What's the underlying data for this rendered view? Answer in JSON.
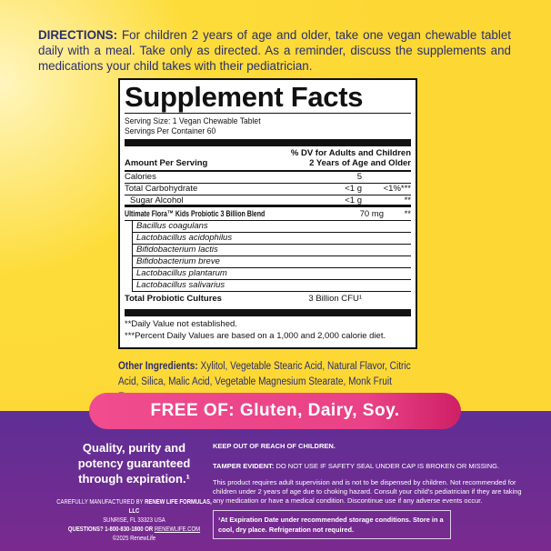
{
  "directions": {
    "label": "DIRECTIONS:",
    "text": "For children 2 years of age and older, take one vegan chewable tablet daily with a meal. Take only as directed. As a reminder, discuss the supplements and medications your child takes with their pediatrician."
  },
  "facts": {
    "title": "Supplement Facts",
    "serving_size": "Serving Size: 1 Vegan Chewable Tablet",
    "servings_per_container": "Servings Per Container 60",
    "amount_header": "Amount Per Serving",
    "dv_header_1": "% DV for Adults and Children",
    "dv_header_2": "2 Years of Age and Older",
    "rows": [
      {
        "name": "Calories",
        "amount": "5",
        "dv": ""
      },
      {
        "name": "Total Carbohydrate",
        "amount": "<1 g",
        "dv": "<1%***"
      },
      {
        "name": "Sugar Alcohol",
        "amount": "<1 g",
        "dv": "**"
      },
      {
        "name": "Ultimate Flora™ Kids Probiotic 3 Billion Blend",
        "amount": "70 mg",
        "dv": "**"
      }
    ],
    "strains": [
      "Bacillus coagulans",
      "Lactobacillus acidophilus",
      "Bifidobacterium lactis",
      "Bifidobacterium breve",
      "Lactobacillus plantarum",
      "Lactobacillus salivarius"
    ],
    "total": {
      "name": "Total Probiotic Cultures",
      "amount": "3 Billion CFU¹"
    },
    "footnote_1": "**Daily Value not established.",
    "footnote_2": "***Percent Daily Values are based on a 1,000 and 2,000 calorie diet."
  },
  "other_ingredients": {
    "label": "Other Ingredients:",
    "text": "Xylitol, Vegetable Stearic Acid, Natural Flavor, Citric Acid, Silica, Malic Acid, Vegetable Magnesium Stearate, Monk Fruit Extract."
  },
  "free_of": "FREE OF: Gluten, Dairy, Soy.",
  "quality": "Quality, purity and potency guaranteed through expiration.¹",
  "manufacturer": {
    "line1_prefix": "CAREFULLY MANUFACTURED BY",
    "line1_name": "RENEW LIFE FORMULAS, LLC",
    "line2": "SUNRISE, FL 33323 USA",
    "line3_prefix": "QUESTIONS? 1-800-830-1800 OR",
    "website": "RENEWLIFE.COM",
    "copyright": "©2025 RenewLife"
  },
  "warnings": {
    "keep_out": "KEEP OUT OF REACH OF CHILDREN.",
    "tamper_label": "TAMPER EVIDENT:",
    "tamper_text": "DO NOT USE IF SAFETY SEAL UNDER CAP IS BROKEN OR MISSING.",
    "supervision": "This product requires adult supervision and is not to be dispensed by children. Not recommended for children under 2 years of age due to choking hazard. Consult your child's pediatrician if they are taking any medication or have a medical condition. Discontinue use if any adverse events occur."
  },
  "expiration_note": "¹At Expiration Date under recommended storage conditions. Store in a cool, dry place. Refrigeration not required.",
  "colors": {
    "yellow": "#fdd835",
    "purple": "#5e2f96",
    "pink": "#f04c8e",
    "navy": "#2a2f6e"
  }
}
